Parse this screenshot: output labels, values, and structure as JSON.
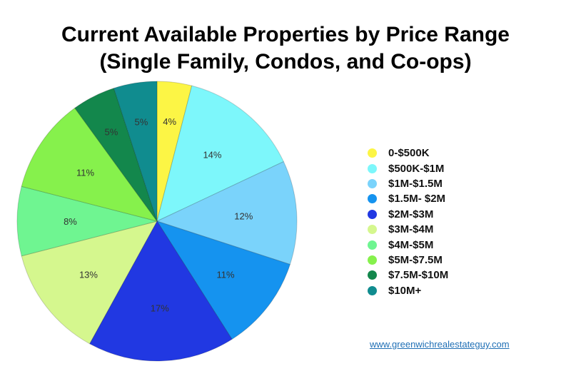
{
  "chart_data": {
    "type": "pie",
    "title": [
      "Current Available Properties by Price Range",
      "(Single Family, Condos, and Co-ops)"
    ],
    "slices": [
      {
        "label": "0-$500K",
        "value": 4,
        "text": "4%",
        "color": "#fcf545"
      },
      {
        "label": "$500K-$1M",
        "value": 14,
        "text": "14%",
        "color": "#7df7fb"
      },
      {
        "label": "$1M-$1.5M",
        "value": 12,
        "text": "12%",
        "color": "#7ad3fb"
      },
      {
        "label": "$1.5M- $2M",
        "value": 11,
        "text": "11%",
        "color": "#1593ef"
      },
      {
        "label": "$2M-$3M",
        "value": 17,
        "text": "17%",
        "color": "#2138e2"
      },
      {
        "label": "$3M-$4M",
        "value": 13,
        "text": "13%",
        "color": "#d5f78e"
      },
      {
        "label": "$4M-$5M",
        "value": 8,
        "text": "8%",
        "color": "#6ff591"
      },
      {
        "label": "$5M-$7.5M",
        "value": 11,
        "text": "11%",
        "color": "#86f14c"
      },
      {
        "label": "$7.5M-$10M",
        "value": 5,
        "text": "5%",
        "color": "#13874c"
      },
      {
        "label": "$10M+",
        "value": 5,
        "text": "5%",
        "color": "#108c8f"
      }
    ],
    "legend_position": "right"
  },
  "footer": {
    "website": "www.greenwichrealestateguy.com"
  }
}
